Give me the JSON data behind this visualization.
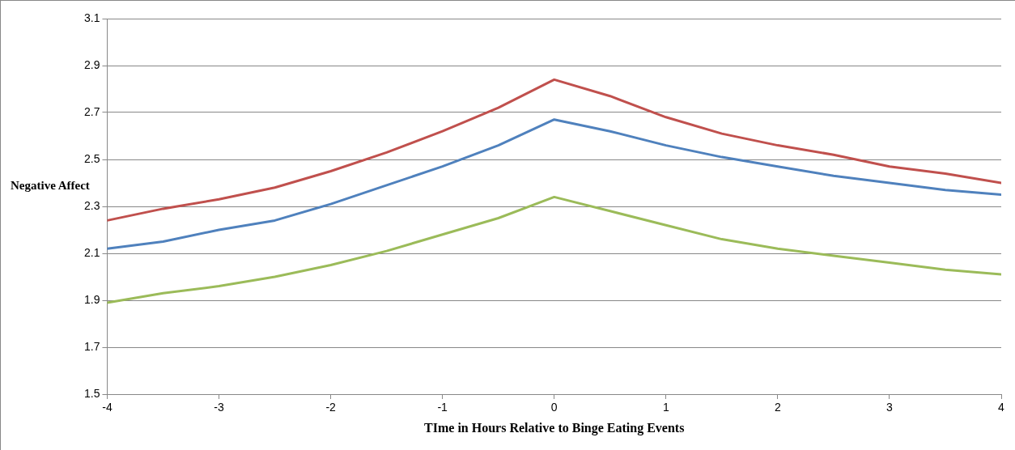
{
  "chart_data": {
    "type": "line",
    "xlabel": "TIme in Hours Relative to Binge Eating Events",
    "ylabel": "Negative Affect",
    "x": [
      -4,
      -3.5,
      -3,
      -2.5,
      -2,
      -1.5,
      -1,
      -0.5,
      0,
      0.5,
      1,
      1.5,
      2,
      2.5,
      3,
      3.5,
      4
    ],
    "series": [
      {
        "color": "#c0504d",
        "values": [
          2.24,
          2.29,
          2.33,
          2.38,
          2.45,
          2.53,
          2.62,
          2.72,
          2.84,
          2.77,
          2.68,
          2.61,
          2.56,
          2.52,
          2.47,
          2.44,
          2.4
        ]
      },
      {
        "color": "#4f81bd",
        "values": [
          2.12,
          2.15,
          2.2,
          2.24,
          2.31,
          2.39,
          2.47,
          2.56,
          2.67,
          2.62,
          2.56,
          2.51,
          2.47,
          2.43,
          2.4,
          2.37,
          2.35
        ]
      },
      {
        "color": "#9bbb59",
        "values": [
          1.89,
          1.93,
          1.96,
          2.0,
          2.05,
          2.11,
          2.18,
          2.25,
          2.34,
          2.28,
          2.22,
          2.16,
          2.12,
          2.09,
          2.06,
          2.03,
          2.01
        ]
      }
    ],
    "xlim": [
      -4,
      4
    ],
    "xticks": [
      -4,
      -3,
      -2,
      -1,
      0,
      1,
      2,
      3,
      4
    ],
    "ylim": [
      1.5,
      3.1
    ],
    "yticks": [
      1.5,
      1.7,
      1.9,
      2.1,
      2.3,
      2.5,
      2.7,
      2.9,
      3.1
    ],
    "grid": "y",
    "legend": false,
    "marker": "none",
    "line_style": "solid"
  }
}
